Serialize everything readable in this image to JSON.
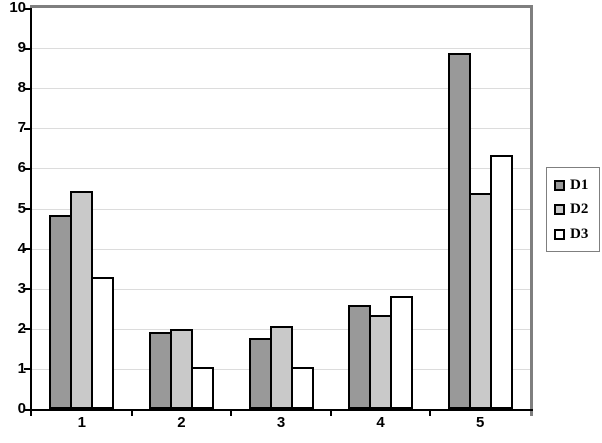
{
  "chart_data": {
    "type": "bar",
    "title": "",
    "xlabel": "",
    "ylabel": "",
    "categories": [
      "1",
      "2",
      "3",
      "4",
      "5"
    ],
    "series": [
      {
        "name": "D1",
        "color": "#999999",
        "values": [
          4.85,
          1.92,
          1.78,
          2.6,
          8.87
        ]
      },
      {
        "name": "D2",
        "color": "#C9C9C9",
        "values": [
          5.45,
          2.0,
          2.06,
          2.35,
          5.4
        ]
      },
      {
        "name": "D3",
        "color": "#FFFFFF",
        "values": [
          3.3,
          1.05,
          1.05,
          2.82,
          6.33
        ]
      }
    ],
    "ylim": [
      0,
      10
    ],
    "y_ticks": [
      "0",
      "1",
      "2",
      "3",
      "4",
      "5",
      "6",
      "7",
      "8",
      "9",
      "10"
    ],
    "grid": true,
    "legend_position": "right"
  },
  "colors": {
    "background": "#FFFFFF",
    "grid": "#DCDCDC",
    "axis": "#000000",
    "plot_border": "#7F7F7F",
    "bar_border": "#000000",
    "legend_border": "#7F7F7F",
    "text": "#000000"
  }
}
